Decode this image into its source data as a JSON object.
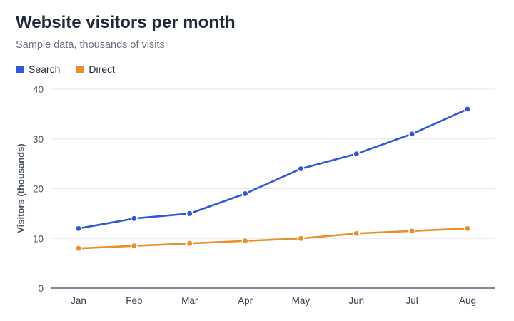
{
  "chart_data": {
    "type": "line",
    "title": "Website visitors per month",
    "subtitle": "Sample data, thousands of visits",
    "xlabel": "",
    "ylabel": "Visitors (thousands)",
    "categories": [
      "Jan",
      "Feb",
      "Mar",
      "Apr",
      "May",
      "Jun",
      "Jul",
      "Aug"
    ],
    "series": [
      {
        "name": "Search",
        "color": "#3058d4",
        "values": [
          12,
          14,
          15,
          19,
          24,
          27,
          31,
          36
        ]
      },
      {
        "name": "Direct",
        "color": "#e88f2a",
        "values": [
          8,
          8.5,
          9,
          9.5,
          10,
          11,
          11.5,
          12
        ]
      }
    ],
    "ylim": [
      0,
      40
    ],
    "yticks": [
      0,
      10,
      20,
      30,
      40
    ],
    "grid": true,
    "legend": "top-left"
  }
}
